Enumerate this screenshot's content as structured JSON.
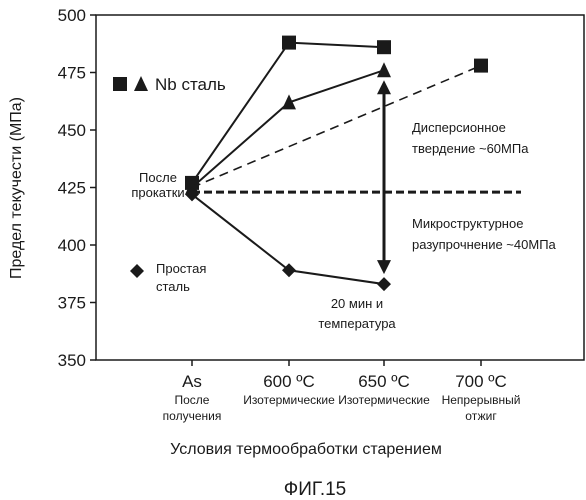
{
  "chart_data": {
    "type": "line",
    "ylabel": "Предел текучести (МПа)",
    "xlabel": "Условия термообработки старением",
    "figure_caption": "ФИГ.15",
    "ylim": [
      350,
      500
    ],
    "yticks": [
      350,
      375,
      400,
      425,
      450,
      475,
      500
    ],
    "categories": [
      "As",
      "600 ºC",
      "650 ºC",
      "700 ºC"
    ],
    "category_sublabels": [
      "После\nполучения",
      "Изотермические",
      "Изотермические",
      "Непрерывный\nотжиг"
    ],
    "series": [
      {
        "legend": "Nb сталь",
        "variant": "square",
        "points": [
          {
            "x": "As",
            "y": 427
          },
          {
            "x": "600 ºC",
            "y": 488
          },
          {
            "x": "650 ºC",
            "y": 486
          }
        ]
      },
      {
        "legend": "Nb сталь",
        "variant": "triangle",
        "points": [
          {
            "x": "As",
            "y": 425
          },
          {
            "x": "600 ºC",
            "y": 462
          },
          {
            "x": "650 ºC",
            "y": 476
          }
        ]
      },
      {
        "name": "Простая сталь",
        "variant": "diamond",
        "points": [
          {
            "x": "As",
            "y": 422
          },
          {
            "x": "600 ºC",
            "y": 389
          },
          {
            "x": "650 ºC",
            "y": 383
          }
        ]
      },
      {
        "legend": "Nb сталь",
        "variant": "square",
        "points": [
          {
            "x": "700 ºC",
            "y": 478
          }
        ]
      }
    ],
    "reference_lines": [
      {
        "style": "dashed",
        "from": {
          "x": "As",
          "y": 425
        },
        "to": {
          "x": "700 ºC",
          "y": 478
        }
      },
      {
        "style": "dashed-bold",
        "y": 423,
        "from_x": "As",
        "to_x": "700 ºC"
      }
    ],
    "double_arrow": {
      "x": "650 ºC",
      "y_top": 476,
      "y_bottom": 383
    },
    "legend": {
      "nb_label": "Nb сталь",
      "plain_label": "Простая\nсталь"
    },
    "annotations": {
      "after_rolling": "После\nпрокатки",
      "precipitation": "Дисперсионное\nтвердение ~60МПа",
      "softening": "Микроструктурное\nразупрочнение ~40МПа",
      "time_temp": "20 мин и\nтемпература"
    },
    "colors": {
      "ink": "#1a1a1a",
      "background": "#ffffff"
    }
  }
}
